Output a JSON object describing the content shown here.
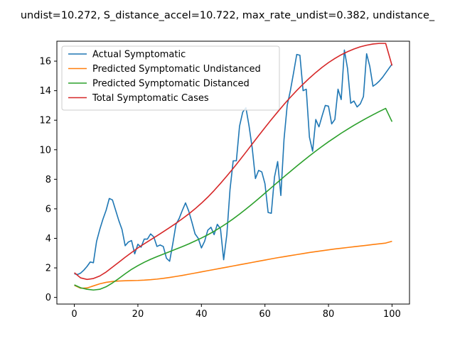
{
  "chart_data": {
    "type": "line",
    "title": "undist=10.272, S_distance_accel=10.722, max_rate_undist=0.382, undistance_",
    "xlabel": "",
    "ylabel": "",
    "xlim": [
      -5.5,
      105.5
    ],
    "ylim": [
      -0.45,
      17.35
    ],
    "xticks": [
      0,
      20,
      40,
      60,
      80,
      100
    ],
    "yticks": [
      0,
      2,
      4,
      6,
      8,
      10,
      12,
      14,
      16
    ],
    "legend_position": "upper left",
    "grid": false,
    "series": [
      {
        "name": "Actual Symptomatic",
        "color": "#1f77b4",
        "x": [
          0,
          1,
          2,
          3,
          4,
          5,
          6,
          7,
          8,
          9,
          10,
          11,
          12,
          13,
          14,
          15,
          16,
          17,
          18,
          19,
          20,
          21,
          22,
          23,
          24,
          25,
          26,
          27,
          28,
          29,
          30,
          31,
          32,
          33,
          34,
          35,
          36,
          37,
          38,
          39,
          40,
          41,
          42,
          43,
          44,
          45,
          46,
          47,
          48,
          49,
          50,
          51,
          52,
          53,
          54,
          55,
          56,
          57,
          58,
          59,
          60,
          61,
          62,
          63,
          64,
          65,
          66,
          67,
          68,
          69,
          70,
          71,
          72,
          73,
          74,
          75,
          76,
          77,
          78,
          79,
          80,
          81,
          82,
          83,
          84,
          85,
          86,
          87,
          88,
          89,
          90,
          91,
          92,
          93,
          94,
          95,
          96,
          97,
          98,
          99,
          100
        ],
        "values": [
          1.6,
          1.55,
          1.65,
          1.85,
          2.1,
          2.4,
          2.35,
          3.8,
          4.6,
          5.3,
          5.9,
          6.7,
          6.6,
          5.9,
          5.2,
          4.6,
          3.5,
          3.75,
          3.85,
          2.95,
          3.6,
          3.4,
          3.95,
          3.95,
          4.3,
          4.1,
          3.45,
          3.55,
          3.45,
          2.65,
          2.45,
          3.65,
          4.95,
          5.35,
          5.9,
          6.4,
          5.85,
          5.1,
          4.3,
          4.0,
          3.35,
          3.8,
          4.55,
          4.75,
          4.25,
          4.95,
          4.65,
          2.55,
          4.25,
          7.3,
          9.25,
          9.25,
          11.6,
          12.55,
          12.85,
          11.6,
          10.1,
          8.05,
          8.6,
          8.5,
          7.7,
          5.75,
          5.7,
          8.15,
          9.2,
          6.9,
          10.7,
          13.0,
          14.0,
          15.2,
          16.45,
          16.4,
          14.0,
          14.1,
          10.85,
          9.9,
          12.05,
          11.55,
          12.3,
          13.0,
          12.95,
          11.75,
          12.05,
          14.1,
          13.4,
          16.75,
          15.5,
          13.15,
          13.3,
          12.9,
          13.1,
          13.6,
          16.5,
          15.65,
          14.3,
          14.45,
          14.65,
          14.9,
          15.2,
          15.5,
          15.8
        ]
      },
      {
        "name": "Predicted Symptomatic Undistanced",
        "color": "#ff7f0e",
        "x": [
          0,
          2,
          4,
          6,
          8,
          10,
          12,
          14,
          16,
          18,
          20,
          22,
          24,
          26,
          28,
          30,
          32,
          34,
          36,
          38,
          40,
          42,
          44,
          46,
          48,
          50,
          52,
          54,
          56,
          58,
          60,
          62,
          64,
          66,
          68,
          70,
          72,
          74,
          76,
          78,
          80,
          82,
          84,
          86,
          88,
          90,
          92,
          94,
          96,
          98,
          100
        ],
        "values": [
          0.82,
          0.62,
          0.64,
          0.78,
          0.92,
          1.02,
          1.08,
          1.11,
          1.13,
          1.14,
          1.15,
          1.17,
          1.2,
          1.24,
          1.29,
          1.35,
          1.42,
          1.49,
          1.57,
          1.65,
          1.73,
          1.81,
          1.89,
          1.97,
          2.05,
          2.13,
          2.21,
          2.29,
          2.37,
          2.45,
          2.53,
          2.61,
          2.69,
          2.76,
          2.83,
          2.9,
          2.97,
          3.04,
          3.1,
          3.16,
          3.22,
          3.28,
          3.33,
          3.38,
          3.43,
          3.48,
          3.53,
          3.58,
          3.63,
          3.68,
          3.8
        ]
      },
      {
        "name": "Predicted Symptomatic Distanced",
        "color": "#2ca02c",
        "x": [
          0,
          2,
          4,
          6,
          8,
          10,
          12,
          14,
          16,
          18,
          20,
          22,
          24,
          26,
          28,
          30,
          32,
          34,
          36,
          38,
          40,
          42,
          44,
          46,
          48,
          50,
          52,
          54,
          56,
          58,
          60,
          62,
          64,
          66,
          68,
          70,
          72,
          74,
          76,
          78,
          80,
          82,
          84,
          86,
          88,
          90,
          92,
          94,
          96,
          98,
          100
        ],
        "values": [
          0.85,
          0.65,
          0.55,
          0.5,
          0.55,
          0.72,
          0.98,
          1.28,
          1.6,
          1.9,
          2.15,
          2.38,
          2.58,
          2.76,
          2.93,
          3.1,
          3.27,
          3.44,
          3.62,
          3.82,
          4.02,
          4.24,
          4.48,
          4.74,
          5.02,
          5.32,
          5.64,
          5.98,
          6.33,
          6.69,
          7.06,
          7.43,
          7.8,
          8.17,
          8.53,
          8.89,
          9.24,
          9.58,
          9.91,
          10.23,
          10.54,
          10.83,
          11.12,
          11.39,
          11.65,
          11.9,
          12.14,
          12.37,
          12.59,
          12.8,
          11.9
        ]
      },
      {
        "name": "Total Symptomatic Cases",
        "color": "#d62728",
        "x": [
          0,
          2,
          4,
          6,
          8,
          10,
          12,
          14,
          16,
          18,
          20,
          22,
          24,
          26,
          28,
          30,
          32,
          34,
          36,
          38,
          40,
          42,
          44,
          46,
          48,
          50,
          52,
          54,
          56,
          58,
          60,
          62,
          64,
          66,
          68,
          70,
          72,
          74,
          76,
          78,
          80,
          82,
          84,
          86,
          88,
          90,
          92,
          94,
          96,
          98,
          100
        ],
        "values": [
          1.67,
          1.32,
          1.22,
          1.28,
          1.45,
          1.72,
          2.05,
          2.38,
          2.72,
          3.04,
          3.35,
          3.63,
          3.9,
          4.17,
          4.45,
          4.73,
          5.02,
          5.33,
          5.65,
          6.0,
          6.38,
          6.79,
          7.24,
          7.72,
          8.22,
          8.74,
          9.28,
          9.83,
          10.39,
          10.95,
          11.5,
          12.04,
          12.56,
          13.07,
          13.55,
          14.01,
          14.44,
          14.85,
          15.23,
          15.58,
          15.9,
          16.18,
          16.43,
          16.64,
          16.82,
          16.97,
          17.08,
          17.16,
          17.2,
          17.2,
          15.7
        ]
      }
    ]
  }
}
